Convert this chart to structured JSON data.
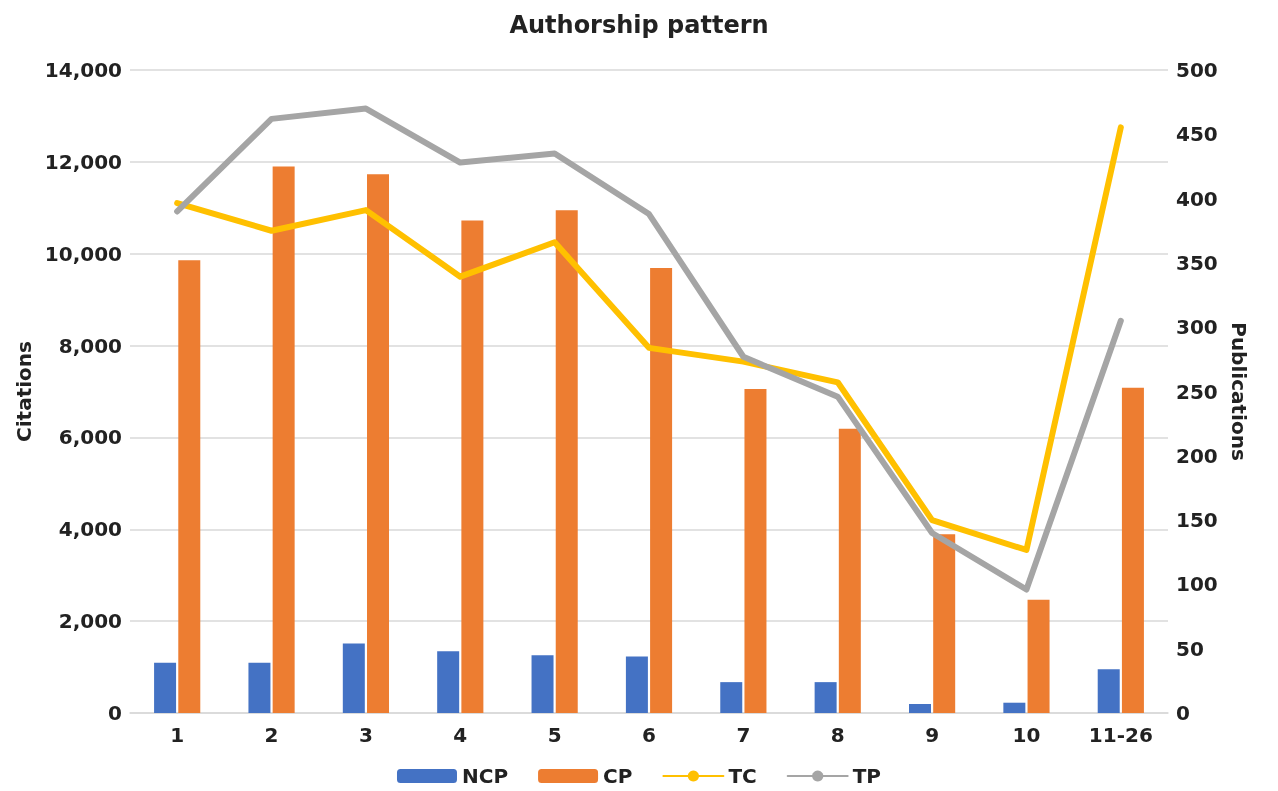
{
  "chart_data": {
    "type": "bar",
    "title": "Authorship pattern",
    "ylabel": "Citations",
    "y2label": "Publications",
    "categories": [
      "1",
      "2",
      "3",
      "4",
      "5",
      "6",
      "7",
      "8",
      "9",
      "10",
      "11-26"
    ],
    "series": [
      {
        "name": "NCP",
        "axis": "y2",
        "color": "#4472c4",
        "values": [
          39,
          39,
          54,
          48,
          45,
          44,
          24,
          24,
          7,
          8,
          34
        ]
      },
      {
        "name": "CP",
        "axis": "y2",
        "color": "#ed7d31",
        "values": [
          352,
          425,
          419,
          383,
          391,
          346,
          252,
          221,
          139,
          88,
          253
        ]
      },
      {
        "name": "TC",
        "type": "line",
        "color": "#ffc000",
        "values": [
          11100,
          10500,
          10950,
          9500,
          10250,
          7950,
          7650,
          7200,
          4200,
          3550,
          12750
        ]
      },
      {
        "name": "TP",
        "type": "line",
        "axis": "y2",
        "color": "#a5a5a5",
        "values": [
          390,
          462,
          470,
          428,
          435,
          388,
          277,
          246,
          140,
          96,
          305
        ]
      }
    ],
    "ylim": [
      0,
      14000
    ],
    "yticks": [
      0,
      {
        "value": 2000,
        "label": "2,000"
      },
      {
        "value": 4000,
        "label": "4,000"
      },
      {
        "value": 6000,
        "label": "6,000"
      },
      {
        "value": 8000,
        "label": "8,000"
      },
      {
        "value": 10000,
        "label": "10,000"
      },
      {
        "value": 12000,
        "label": "12,000"
      },
      {
        "value": 14000,
        "label": "14,000"
      }
    ],
    "y2lim": [
      0,
      500
    ],
    "y2ticks": [
      0,
      50,
      100,
      150,
      200,
      250,
      300,
      350,
      400,
      450,
      500
    ],
    "grid": "y",
    "legend": "bottom",
    "marker": "none",
    "line_style": "solid"
  }
}
